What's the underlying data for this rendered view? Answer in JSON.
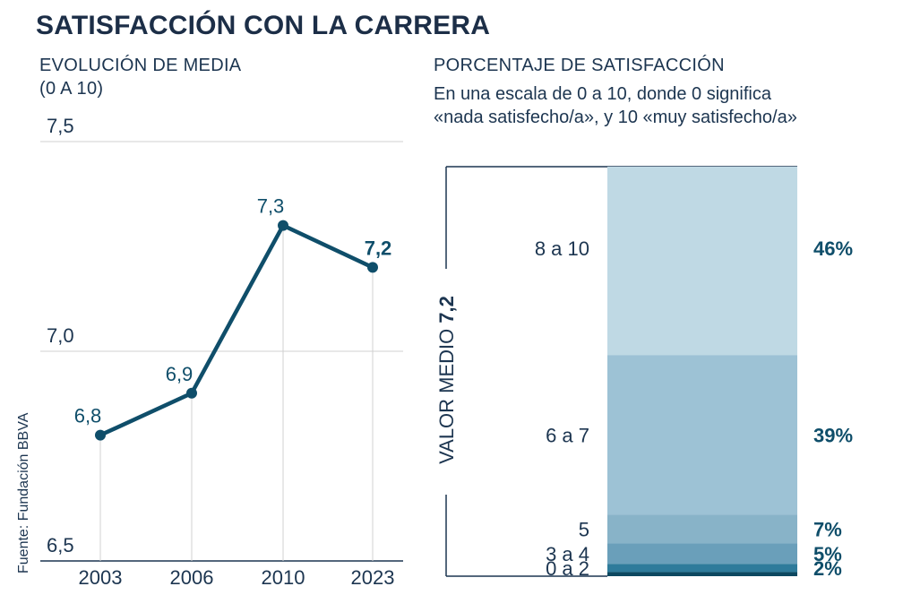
{
  "title": "SATISFACCIÓN CON LA CARRERA",
  "source": "Fuente: Fundación BBVA",
  "colors": {
    "line": "#0f4e6a",
    "text": "#1c3550",
    "grid": "#d0d0d0",
    "axis": "#1c3550",
    "bands": [
      "#bfd9e4",
      "#9dc2d5",
      "#88b3c8",
      "#6a9fba",
      "#2e7b9b",
      "#0d4860"
    ]
  },
  "left_panel": {
    "subtitle_line1": "EVOLUCIÓN DE MEDIA",
    "subtitle_line2": "(0 A 10)"
  },
  "right_panel": {
    "subtitle": "PORCENTAJE DE SATISFACCIÓN",
    "description_line1": "En una escala de 0 a 10, donde 0 significa",
    "description_line2": "«nada satisfecho/a», y 10 «muy satisfecho/a»",
    "side_label": "VALOR MEDIO",
    "side_value": "7,2"
  },
  "chart_data": [
    {
      "type": "line",
      "title": "EVOLUCIÓN DE MEDIA (0 A 10)",
      "x": [
        "2003",
        "2006",
        "2010",
        "2023"
      ],
      "series": [
        {
          "values": [
            6.8,
            6.9,
            7.3,
            7.2
          ]
        }
      ],
      "data_labels": [
        "6,8",
        "6,9",
        "7,3",
        "7,2"
      ],
      "ylim": [
        6.5,
        7.5
      ],
      "yticks": [
        7.5,
        7.0,
        6.5
      ],
      "ytick_labels": [
        "7,5",
        "7,0",
        "6,5"
      ],
      "grid": true
    },
    {
      "type": "bar",
      "stacked": true,
      "title": "PORCENTAJE DE SATISFACCIÓN",
      "categories": [
        "8 a 10",
        "6 a 7",
        "5",
        "3 a 4",
        "0 a 2"
      ],
      "values": [
        46,
        39,
        7,
        5,
        2
      ],
      "value_labels": [
        "46%",
        "39%",
        "7%",
        "5%",
        "2%"
      ]
    }
  ]
}
